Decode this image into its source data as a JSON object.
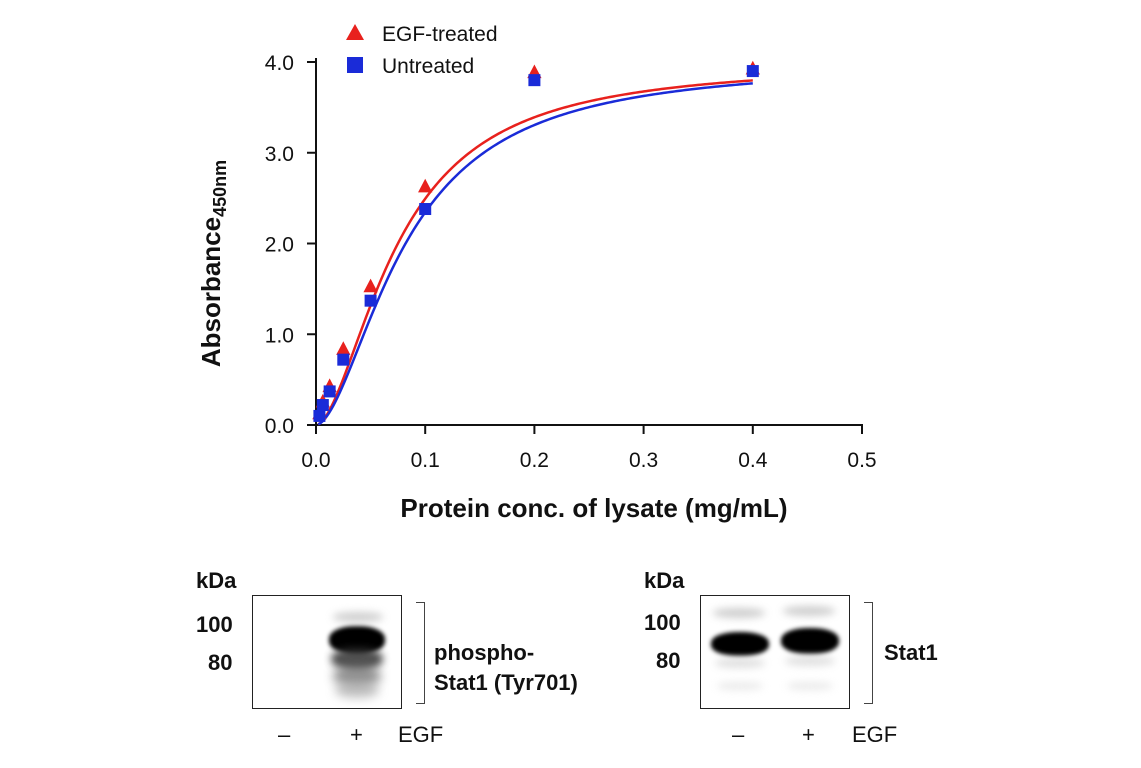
{
  "chart_data": {
    "type": "scatter",
    "xlabel": "Protein conc. of lysate (mg/mL)",
    "ylabel": "Absorbance",
    "ylabel_sub": "450nm",
    "xlim": [
      0,
      0.5
    ],
    "ylim": [
      0,
      4.0
    ],
    "x_ticks": [
      "0.0",
      "0.1",
      "0.2",
      "0.3",
      "0.4",
      "0.5"
    ],
    "y_ticks": [
      "0.0",
      "1.0",
      "2.0",
      "3.0",
      "4.0"
    ],
    "legend_position": "top-left",
    "grid": false,
    "series": [
      {
        "name": "EGF-treated",
        "marker": "triangle",
        "color": "#e8211d",
        "x": [
          0.003125,
          0.00625,
          0.0125,
          0.025,
          0.05,
          0.1,
          0.2,
          0.4
        ],
        "y": [
          0.12,
          0.25,
          0.42,
          0.83,
          1.52,
          2.62,
          3.88,
          3.92
        ]
      },
      {
        "name": "Untreated",
        "marker": "square",
        "color": "#1a2bd8",
        "x": [
          0.003125,
          0.00625,
          0.0125,
          0.025,
          0.05,
          0.1,
          0.2,
          0.4
        ],
        "y": [
          0.1,
          0.22,
          0.37,
          0.72,
          1.37,
          2.38,
          3.8,
          3.9
        ]
      }
    ]
  },
  "blots": [
    {
      "kda_label": "kDa",
      "markers": [
        "100",
        "80"
      ],
      "target_line1": "phospho-",
      "target_line2": "Stat1 (Tyr701)",
      "lane_minus": "–",
      "lane_plus": "+",
      "treatment": "EGF"
    },
    {
      "kda_label": "kDa",
      "markers": [
        "100",
        "80"
      ],
      "target_line1": "Stat1",
      "target_line2": "",
      "lane_minus": "–",
      "lane_plus": "+",
      "treatment": "EGF"
    }
  ]
}
